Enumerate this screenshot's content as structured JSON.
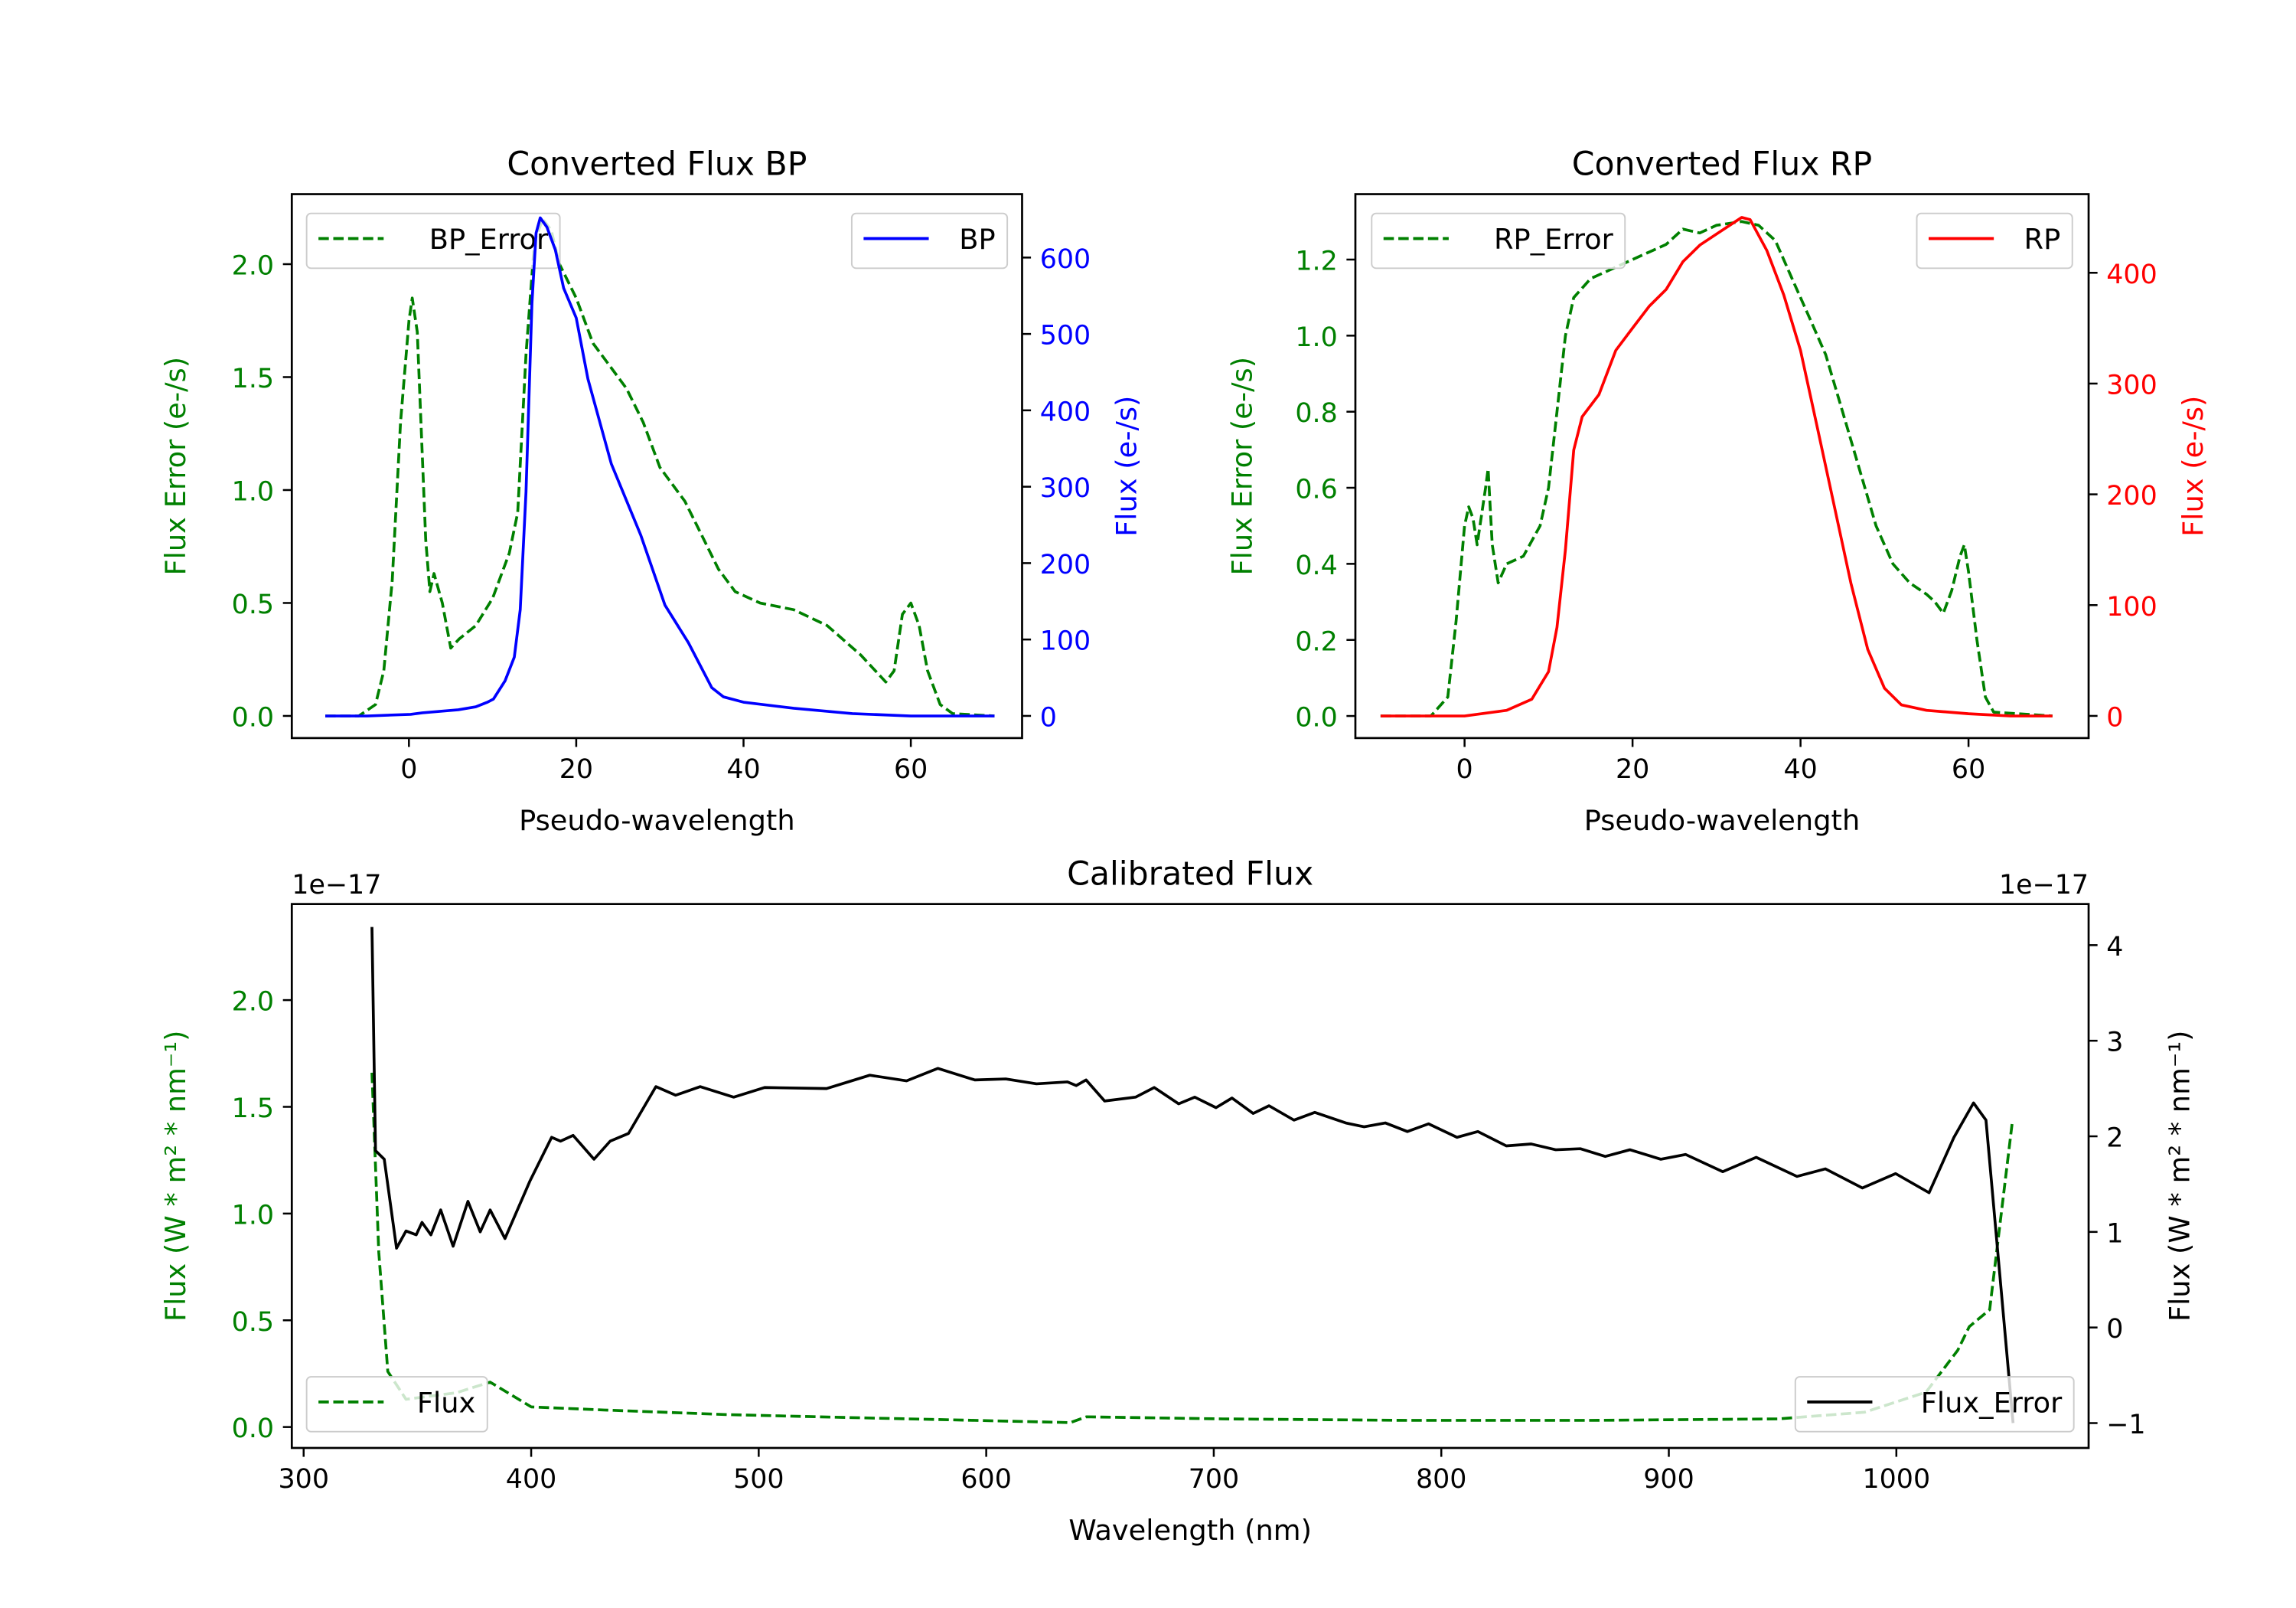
{
  "colors": {
    "error": "#008000",
    "bp": "#0000ff",
    "rp": "#ff0000",
    "flux": "#000000"
  },
  "chart_data": [
    {
      "type": "line",
      "title": "Converted Flux BP",
      "xlabel": "Pseudo-wavelength",
      "ylabel_left": "Flux Error (e-/s)",
      "ylabel_right": "Flux (e-/s)",
      "xlim": [
        -14,
        73.3
      ],
      "ylim_left": [
        -0.098,
        2.31
      ],
      "ylim_right": [
        -29,
        683
      ],
      "xticks": [
        0,
        20,
        40,
        60
      ],
      "xtick_labels": [
        "0",
        "20",
        "40",
        "60"
      ],
      "yticks_left": [
        0,
        0.5,
        1.0,
        1.5,
        2.0
      ],
      "ytick_labels_left": [
        "0.0",
        "0.5",
        "1.0",
        "1.5",
        "2.0"
      ],
      "yticks_right": [
        0,
        100,
        200,
        300,
        400,
        500,
        600
      ],
      "ytick_labels_right": [
        "0",
        "100",
        "200",
        "300",
        "400",
        "500",
        "600"
      ],
      "legend_left": {
        "label": "BP_Error",
        "placement": "upper left"
      },
      "legend_right": {
        "label": "BP",
        "placement": "upper right"
      },
      "series": [
        {
          "name": "BP_Error",
          "axis": "left",
          "color": "#008000",
          "dashed": true,
          "x": [
            -10,
            -6,
            -4,
            -3,
            -2,
            -1,
            0,
            0.4,
            1,
            2,
            2.5,
            3,
            4,
            5,
            6,
            8,
            10,
            12,
            13,
            14,
            15,
            16,
            17,
            18,
            20,
            22,
            24,
            26,
            28,
            30,
            31,
            33,
            35,
            37,
            39,
            42,
            46,
            50,
            54,
            57,
            58,
            59,
            60,
            61,
            62,
            63.5,
            65,
            70
          ],
          "y": [
            0,
            0,
            0.05,
            0.2,
            0.6,
            1.3,
            1.75,
            1.85,
            1.7,
            0.78,
            0.55,
            0.63,
            0.5,
            0.3,
            0.34,
            0.4,
            0.52,
            0.72,
            0.9,
            1.6,
            2.1,
            2.2,
            2.15,
            2.0,
            1.85,
            1.65,
            1.55,
            1.45,
            1.3,
            1.1,
            1.05,
            0.95,
            0.8,
            0.65,
            0.55,
            0.5,
            0.47,
            0.4,
            0.27,
            0.15,
            0.2,
            0.45,
            0.5,
            0.4,
            0.2,
            0.05,
            0.01,
            0
          ]
        },
        {
          "name": "BP",
          "axis": "right",
          "color": "#0000ff",
          "dashed": false,
          "x": [
            -10,
            -5,
            0.2,
            1.6,
            5.9,
            8,
            9.4,
            10.1,
            11.5,
            12.6,
            13.3,
            14,
            14.7,
            15.2,
            15.7,
            16.5,
            17.5,
            18.5,
            20,
            21.4,
            24.2,
            27.7,
            30.6,
            33.4,
            36.2,
            37.6,
            40,
            46,
            53,
            60,
            65,
            70
          ],
          "y": [
            0,
            0,
            2,
            4,
            8,
            12,
            18,
            22,
            46,
            77,
            139,
            293,
            540,
            632,
            652,
            640,
            610,
            560,
            521,
            441,
            330,
            237,
            145,
            96,
            37,
            25,
            18,
            10,
            3,
            0,
            0,
            0
          ]
        }
      ]
    },
    {
      "type": "line",
      "title": "Converted Flux RP",
      "xlabel": "Pseudo-wavelength",
      "ylabel_left": "Flux Error (e-/s)",
      "ylabel_right": "Flux (e-/s)",
      "xlim": [
        -13,
        74.3
      ],
      "ylim_left": [
        -0.058,
        1.372
      ],
      "ylim_right": [
        -20,
        471
      ],
      "xticks": [
        0,
        20,
        40,
        60
      ],
      "xtick_labels": [
        "0",
        "20",
        "40",
        "60"
      ],
      "yticks_left": [
        0,
        0.2,
        0.4,
        0.6,
        0.8,
        1.0,
        1.2
      ],
      "ytick_labels_left": [
        "0.0",
        "0.2",
        "0.4",
        "0.6",
        "0.8",
        "1.0",
        "1.2"
      ],
      "yticks_right": [
        0,
        100,
        200,
        300,
        400
      ],
      "ytick_labels_right": [
        "0",
        "100",
        "200",
        "300",
        "400"
      ],
      "legend_left": {
        "label": "RP_Error",
        "placement": "upper left"
      },
      "legend_right": {
        "label": "RP",
        "placement": "upper right"
      },
      "series": [
        {
          "name": "RP_Error",
          "axis": "left",
          "color": "#008000",
          "dashed": true,
          "x": [
            -10,
            -4,
            -2,
            -1,
            0,
            0.5,
            1,
            1.5,
            2.5,
            2.8,
            3.3,
            4,
            5,
            7,
            9,
            10,
            11,
            12,
            13,
            15,
            18,
            20,
            22,
            24,
            26,
            28,
            30,
            33,
            35,
            37,
            39,
            41,
            43,
            45,
            47,
            49,
            51,
            53,
            55,
            56,
            57,
            58,
            59,
            59.5,
            60,
            61,
            62,
            63,
            70
          ],
          "y": [
            0,
            0,
            0.05,
            0.25,
            0.5,
            0.55,
            0.52,
            0.45,
            0.6,
            0.65,
            0.45,
            0.35,
            0.4,
            0.42,
            0.5,
            0.6,
            0.8,
            1.0,
            1.1,
            1.15,
            1.18,
            1.2,
            1.22,
            1.24,
            1.28,
            1.27,
            1.29,
            1.3,
            1.29,
            1.25,
            1.15,
            1.05,
            0.95,
            0.8,
            0.65,
            0.5,
            0.4,
            0.35,
            0.32,
            0.3,
            0.27,
            0.33,
            0.42,
            0.45,
            0.38,
            0.2,
            0.05,
            0.01,
            0
          ]
        },
        {
          "name": "RP",
          "axis": "right",
          "color": "#ff0000",
          "dashed": false,
          "x": [
            -10,
            0,
            5,
            8,
            10,
            11,
            12,
            13,
            14,
            16,
            18,
            20,
            22,
            24,
            26,
            28,
            30,
            32,
            33,
            34,
            36,
            38,
            40,
            42,
            44,
            46,
            48,
            50,
            52,
            55,
            60,
            65,
            70
          ],
          "y": [
            0,
            0,
            5,
            15,
            40,
            80,
            150,
            240,
            270,
            290,
            330,
            350,
            370,
            385,
            410,
            425,
            435,
            445,
            450,
            448,
            420,
            380,
            330,
            260,
            190,
            120,
            60,
            25,
            10,
            5,
            2,
            0,
            0
          ]
        }
      ]
    },
    {
      "type": "line",
      "title": "Calibrated Flux",
      "xlabel": "Wavelength (nm)",
      "ylabel_left": "Flux (W * m² * nm⁻¹)",
      "ylabel_right": "Flux (W * m² * nm⁻¹)",
      "offset_left": "1e−17",
      "offset_right": "1e−17",
      "xlim": [
        294.8,
        1084.5
      ],
      "ylim_left": [
        -0.098,
        2.45
      ],
      "ylim_right": [
        -1.26,
        4.43
      ],
      "xticks": [
        300,
        400,
        500,
        600,
        700,
        800,
        900,
        1000
      ],
      "xtick_labels": [
        "300",
        "400",
        "500",
        "600",
        "700",
        "800",
        "900",
        "1000"
      ],
      "yticks_left": [
        0,
        0.5,
        1.0,
        1.5,
        2.0
      ],
      "ytick_labels_left": [
        "0.0",
        "0.5",
        "1.0",
        "1.5",
        "2.0"
      ],
      "yticks_right": [
        -1,
        0,
        1,
        2,
        3,
        4
      ],
      "ytick_labels_right": [
        "−1",
        "0",
        "1",
        "2",
        "3",
        "4"
      ],
      "legend_left": {
        "label": "Flux",
        "placement": "lower left"
      },
      "legend_right": {
        "label": "Flux_Error",
        "placement": "lower right"
      },
      "series": [
        {
          "name": "Flux_Error",
          "axis": "left",
          "color": "#008000",
          "dashed": true,
          "x": [
            330,
            333,
            337,
            345,
            367,
            382,
            400,
            432,
            486,
            540,
            595,
            637,
            644,
            704,
            785,
            866,
            948,
            986,
            1013,
            1027,
            1032,
            1041,
            1051
          ],
          "y": [
            1.66,
            0.82,
            0.26,
            0.13,
            0.16,
            0.21,
            0.094,
            0.08,
            0.058,
            0.044,
            0.031,
            0.021,
            0.048,
            0.038,
            0.031,
            0.031,
            0.038,
            0.069,
            0.163,
            0.36,
            0.47,
            0.55,
            1.43
          ]
        },
        {
          "name": "Flux",
          "axis": "right",
          "color": "#000000",
          "dashed": false,
          "x": [
            330,
            331.6,
            335.4,
            340.8,
            345,
            349.5,
            352,
            355.9,
            360.2,
            365.7,
            372.2,
            377.6,
            382,
            388.5,
            399.4,
            409,
            412.9,
            418.4,
            427.6,
            434.7,
            442.8,
            454.8,
            463.5,
            474.3,
            489,
            502.6,
            529.8,
            548.8,
            565,
            578.7,
            595,
            608.6,
            622.1,
            635.7,
            639.5,
            643.9,
            652,
            665.6,
            673.8,
            684.6,
            691.7,
            701,
            708,
            717.3,
            724.3,
            735.2,
            744.4,
            758,
            766.1,
            775.4,
            785.1,
            794.4,
            806.9,
            816.1,
            828.6,
            839.5,
            850.3,
            861.2,
            872.1,
            882.9,
            896.5,
            907.4,
            923.7,
            938.4,
            956.3,
            968.8,
            985.1,
            999.7,
            1014.4,
            1025.3,
            1033.9,
            1039.4,
            1051.3
          ],
          "y": [
            4.19,
            1.85,
            1.76,
            0.83,
            1.01,
            0.97,
            1.1,
            0.97,
            1.23,
            0.85,
            1.32,
            1.0,
            1.23,
            0.93,
            1.53,
            1.99,
            1.95,
            2.01,
            1.76,
            1.95,
            2.03,
            2.52,
            2.43,
            2.52,
            2.41,
            2.51,
            2.5,
            2.64,
            2.58,
            2.71,
            2.59,
            2.6,
            2.55,
            2.57,
            2.53,
            2.59,
            2.37,
            2.41,
            2.51,
            2.34,
            2.41,
            2.3,
            2.4,
            2.24,
            2.32,
            2.17,
            2.25,
            2.14,
            2.1,
            2.14,
            2.05,
            2.13,
            1.99,
            2.05,
            1.9,
            1.92,
            1.86,
            1.87,
            1.79,
            1.86,
            1.76,
            1.81,
            1.63,
            1.78,
            1.58,
            1.66,
            1.46,
            1.61,
            1.41,
            1.99,
            2.35,
            2.17,
            -1.0
          ]
        }
      ]
    }
  ]
}
